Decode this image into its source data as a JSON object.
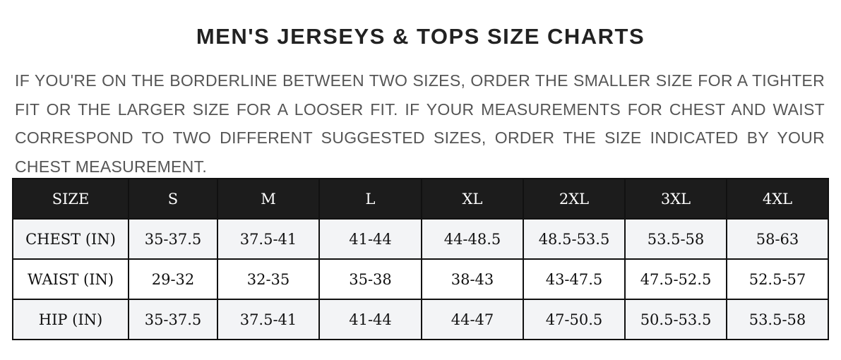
{
  "title": "MEN'S JERSEYS & TOPS SIZE CHARTS",
  "description": "IF YOU'RE ON THE BORDERLINE BETWEEN TWO SIZES, ORDER THE SMALLER SIZE FOR A TIGHTER FIT OR THE LARGER SIZE FOR A LOOSER FIT. IF YOUR MEASUREMENTS FOR CHEST AND WAIST CORRESPOND TO TWO DIFFERENT SUGGESTED SIZES, ORDER THE SIZE INDICATED BY YOUR CHEST MEASUREMENT.",
  "table": {
    "header": [
      "SIZE",
      "S",
      "M",
      "L",
      "XL",
      "2XL",
      "3XL",
      "4XL"
    ],
    "rows": [
      [
        "CHEST (IN)",
        "35-37.5",
        "37.5-41",
        "41-44",
        "44-48.5",
        "48.5-53.5",
        "53.5-58",
        "58-63"
      ],
      [
        "WAIST (IN)",
        "29-32",
        "32-35",
        "35-38",
        "38-43",
        "43-47.5",
        "47.5-52.5",
        "52.5-57"
      ],
      [
        "HIP (IN)",
        "35-37.5",
        "37.5-41",
        "41-44",
        "44-47",
        "47-50.5",
        "50.5-53.5",
        "53.5-58"
      ]
    ]
  },
  "colors": {
    "header_bg": "#1c1c1c",
    "alt_row_bg": "#f3f4f6"
  }
}
